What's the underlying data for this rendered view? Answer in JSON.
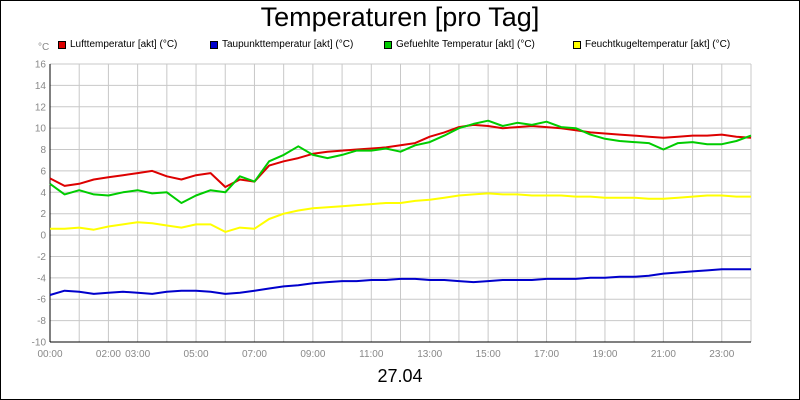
{
  "chart_data": {
    "type": "line",
    "title": "Temperaturen [pro Tag]",
    "xlabel": "27.04",
    "unit_label": "°C",
    "x_tick_labels": [
      "00:00",
      "02:00",
      "03:00",
      "05:00",
      "07:00",
      "09:00",
      "11:00",
      "13:00",
      "15:00",
      "17:00",
      "19:00",
      "21:00",
      "23:00"
    ],
    "x_tick_hours": [
      0,
      2,
      3,
      5,
      7,
      9,
      11,
      13,
      15,
      17,
      19,
      21,
      23
    ],
    "xlim_hours": [
      0,
      24
    ],
    "ylim": [
      -10,
      16
    ],
    "y_ticks": [
      -10,
      -8,
      -6,
      -4,
      -2,
      0,
      2,
      4,
      6,
      8,
      10,
      12,
      14,
      16
    ],
    "y_tick_labels": [
      "-10",
      "-8",
      "-6",
      "-4",
      "-2",
      "0",
      "2",
      "4",
      "6",
      "8",
      "10",
      "12",
      "14",
      "16"
    ],
    "grid": true,
    "legend_position": "top",
    "series": [
      {
        "name": "Lufttemperatur [akt] (°C)",
        "color": "#dd0000",
        "x": [
          0,
          0.5,
          1,
          1.5,
          2,
          2.5,
          3,
          3.5,
          4,
          4.5,
          5,
          5.5,
          6,
          6.5,
          7,
          7.5,
          8,
          8.5,
          9,
          9.5,
          10,
          10.5,
          11,
          11.5,
          12,
          12.5,
          13,
          13.5,
          14,
          14.5,
          15,
          15.5,
          16,
          16.5,
          17,
          17.5,
          18,
          18.5,
          19,
          19.5,
          20,
          20.5,
          21,
          21.5,
          22,
          22.5,
          23,
          23.5,
          24
        ],
        "y": [
          5.3,
          4.6,
          4.8,
          5.2,
          5.4,
          5.6,
          5.8,
          6.0,
          5.5,
          5.2,
          5.6,
          5.8,
          4.5,
          5.2,
          5.0,
          6.5,
          6.9,
          7.2,
          7.6,
          7.8,
          7.9,
          8.0,
          8.1,
          8.2,
          8.4,
          8.6,
          9.2,
          9.6,
          10.1,
          10.3,
          10.2,
          10.0,
          10.1,
          10.2,
          10.1,
          10.0,
          9.8,
          9.6,
          9.5,
          9.4,
          9.3,
          9.2,
          9.1,
          9.2,
          9.3,
          9.3,
          9.4,
          9.2,
          9.1
        ]
      },
      {
        "name": "Taupunkttemperatur [akt] (°C)",
        "color": "#0000cc",
        "x": [
          0,
          0.5,
          1,
          1.5,
          2,
          2.5,
          3,
          3.5,
          4,
          4.5,
          5,
          5.5,
          6,
          6.5,
          7,
          7.5,
          8,
          8.5,
          9,
          9.5,
          10,
          10.5,
          11,
          11.5,
          12,
          12.5,
          13,
          13.5,
          14,
          14.5,
          15,
          15.5,
          16,
          16.5,
          17,
          17.5,
          18,
          18.5,
          19,
          19.5,
          20,
          20.5,
          21,
          21.5,
          22,
          22.5,
          23,
          23.5,
          24
        ],
        "y": [
          -5.6,
          -5.2,
          -5.3,
          -5.5,
          -5.4,
          -5.3,
          -5.4,
          -5.5,
          -5.3,
          -5.2,
          -5.2,
          -5.3,
          -5.5,
          -5.4,
          -5.2,
          -5.0,
          -4.8,
          -4.7,
          -4.5,
          -4.4,
          -4.3,
          -4.3,
          -4.2,
          -4.2,
          -4.1,
          -4.1,
          -4.2,
          -4.2,
          -4.3,
          -4.4,
          -4.3,
          -4.2,
          -4.2,
          -4.2,
          -4.1,
          -4.1,
          -4.1,
          -4.0,
          -4.0,
          -3.9,
          -3.9,
          -3.8,
          -3.6,
          -3.5,
          -3.4,
          -3.3,
          -3.2,
          -3.2,
          -3.2
        ]
      },
      {
        "name": "Gefuehlte Temperatur [akt] (°C)",
        "color": "#00cc00",
        "x": [
          0,
          0.5,
          1,
          1.5,
          2,
          2.5,
          3,
          3.5,
          4,
          4.5,
          5,
          5.5,
          6,
          6.5,
          7,
          7.5,
          8,
          8.5,
          9,
          9.5,
          10,
          10.5,
          11,
          11.5,
          12,
          12.5,
          13,
          13.5,
          14,
          14.5,
          15,
          15.5,
          16,
          16.5,
          17,
          17.5,
          18,
          18.5,
          19,
          19.5,
          20,
          20.5,
          21,
          21.5,
          22,
          22.5,
          23,
          23.5,
          24
        ],
        "y": [
          4.8,
          3.8,
          4.2,
          3.8,
          3.7,
          4.0,
          4.2,
          3.9,
          4.0,
          3.0,
          3.7,
          4.2,
          4.0,
          5.5,
          5.0,
          6.9,
          7.5,
          8.3,
          7.5,
          7.2,
          7.5,
          7.9,
          7.9,
          8.1,
          7.8,
          8.4,
          8.7,
          9.3,
          10.0,
          10.4,
          10.7,
          10.2,
          10.5,
          10.3,
          10.6,
          10.1,
          10.0,
          9.4,
          9.0,
          8.8,
          8.7,
          8.6,
          8.0,
          8.6,
          8.7,
          8.5,
          8.5,
          8.8,
          9.3
        ]
      },
      {
        "name": "Feuchtkugeltemperatur [akt] (°C)",
        "color": "#ffff00",
        "x": [
          0,
          0.5,
          1,
          1.5,
          2,
          2.5,
          3,
          3.5,
          4,
          4.5,
          5,
          5.5,
          6,
          6.5,
          7,
          7.5,
          8,
          8.5,
          9,
          9.5,
          10,
          10.5,
          11,
          11.5,
          12,
          12.5,
          13,
          13.5,
          14,
          14.5,
          15,
          15.5,
          16,
          16.5,
          17,
          17.5,
          18,
          18.5,
          19,
          19.5,
          20,
          20.5,
          21,
          21.5,
          22,
          22.5,
          23,
          23.5,
          24
        ],
        "y": [
          0.6,
          0.6,
          0.7,
          0.5,
          0.8,
          1.0,
          1.2,
          1.1,
          0.9,
          0.7,
          1.0,
          1.0,
          0.3,
          0.7,
          0.6,
          1.5,
          2.0,
          2.3,
          2.5,
          2.6,
          2.7,
          2.8,
          2.9,
          3.0,
          3.0,
          3.2,
          3.3,
          3.5,
          3.7,
          3.8,
          3.9,
          3.8,
          3.8,
          3.7,
          3.7,
          3.7,
          3.6,
          3.6,
          3.5,
          3.5,
          3.5,
          3.4,
          3.4,
          3.5,
          3.6,
          3.7,
          3.7,
          3.6,
          3.6
        ]
      }
    ]
  }
}
